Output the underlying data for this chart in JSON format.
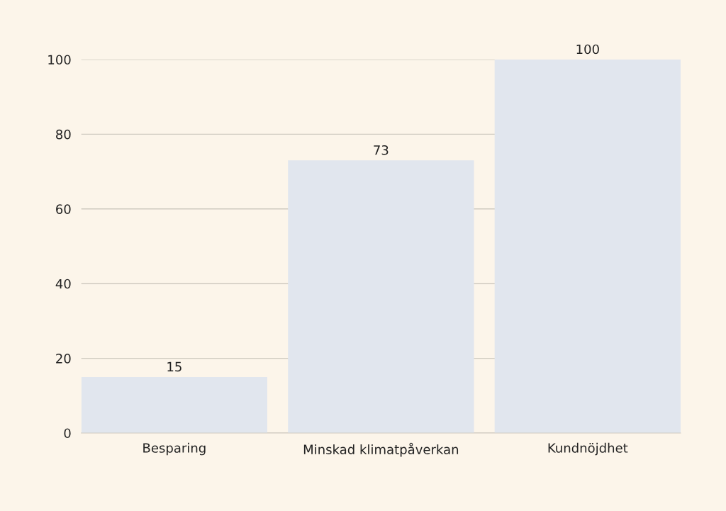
{
  "chart_data": {
    "type": "bar",
    "categories": [
      "Besparing",
      "Minskad klimatpåverkan",
      "Kundnöjdhet"
    ],
    "values": [
      15,
      73,
      100
    ],
    "color": "#e1e6ee",
    "ylim": [
      0,
      100
    ],
    "yticks": [
      0,
      20,
      40,
      60,
      80,
      100
    ],
    "grid": "y",
    "data_labels": true
  }
}
